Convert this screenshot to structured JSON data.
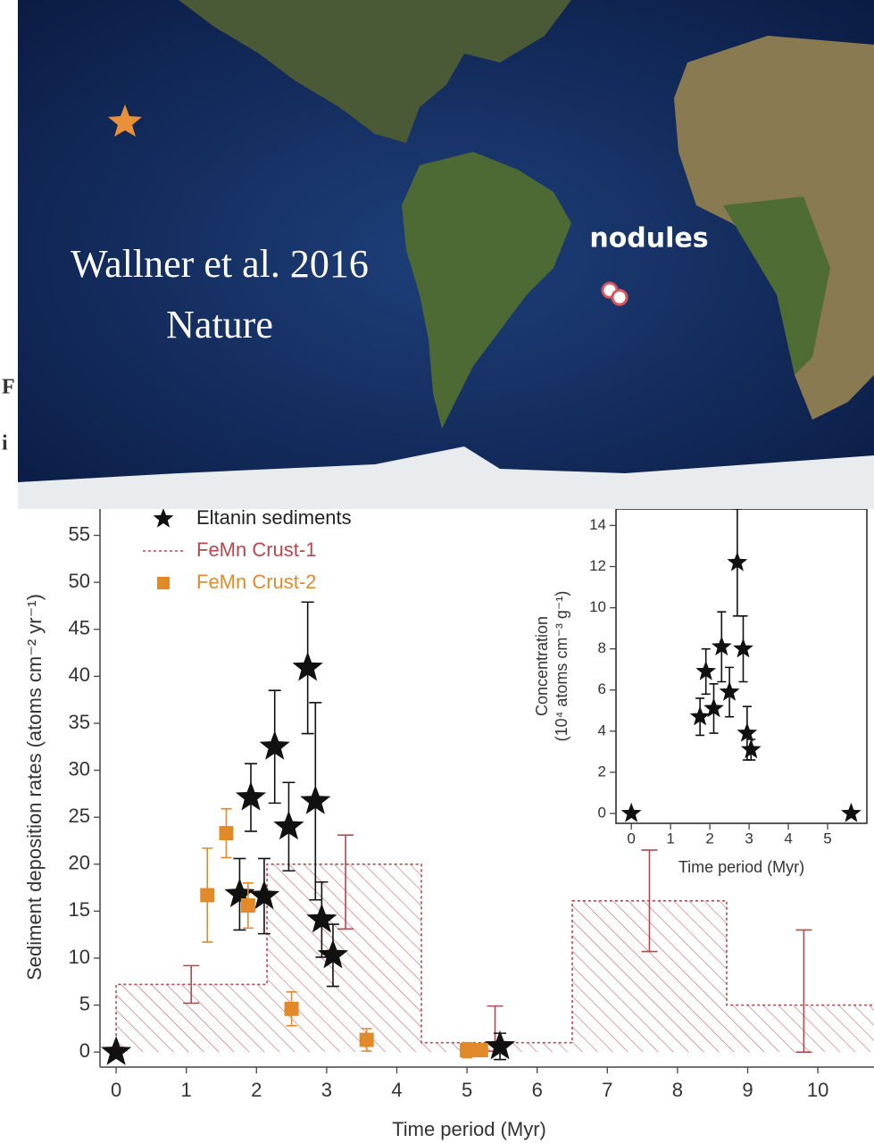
{
  "fragments": [
    "F",
    "i"
  ],
  "map": {
    "citation": [
      "Wallner et al. 2016",
      "Nature"
    ],
    "label": "nodules"
  },
  "chart_data": [
    {
      "type": "scatter",
      "xlabel": "Time period (Myr)",
      "ylabel": "Sediment deposition rates (atoms cm⁻² yr⁻¹)",
      "xlim": [
        -0.23,
        10.8
      ],
      "ylim": [
        -1.6,
        58
      ],
      "xticks": [
        0,
        1,
        2,
        3,
        4,
        5,
        6,
        7,
        8,
        9,
        10
      ],
      "yticks": [
        0,
        5,
        10,
        15,
        20,
        25,
        30,
        35,
        40,
        45,
        50,
        55
      ],
      "series": [
        {
          "name": "Eltanin sediments",
          "color": "#111111",
          "marker": "star",
          "x": [
            0,
            1.76,
            2.11,
            1.92,
            2.26,
            2.46,
            2.73,
            2.84,
            2.93,
            3.09,
            5.47
          ],
          "values": [
            0,
            16.8,
            16.6,
            27.1,
            32.5,
            24,
            40.9,
            26.7,
            14.1,
            10.3,
            0.6
          ],
          "errors": [
            0.3,
            3.8,
            4,
            3.6,
            6,
            4.7,
            7,
            10.5,
            4,
            3.3,
            1.4
          ]
        },
        {
          "name": "FeMn Crust-1",
          "color": "#b5474f",
          "marker": "step",
          "bins": [
            0,
            2.15,
            4.35,
            6.5,
            8.7,
            10.8
          ],
          "values": [
            7.2,
            20,
            1,
            16.1,
            5
          ],
          "error_bars": {
            "x": [
              1.07,
              3.27,
              5.4,
              7.6,
              9.8
            ],
            "values": [
              7.2,
              18.1,
              2.5,
              16.1,
              6.5
            ],
            "errors": [
              2,
              5,
              2.4,
              5.4,
              6.5
            ]
          }
        },
        {
          "name": "FeMn Crust-2",
          "color": "#e08a2a",
          "marker": "square",
          "x": [
            1.3,
            1.57,
            1.88,
            2.5,
            3.57,
            5.0,
            5.2
          ],
          "values": [
            16.7,
            23.3,
            15.6,
            4.6,
            1.3,
            0.2,
            0.2
          ],
          "errors": [
            5,
            2.6,
            2.4,
            1.8,
            1.2,
            0.8,
            0.6
          ]
        }
      ]
    },
    {
      "type": "scatter",
      "xlabel": "Time period (Myr)",
      "ylabel": [
        "Concentration",
        "(10⁴ atoms cm⁻³ g⁻¹)"
      ],
      "xlim": [
        -0.39,
        6.0
      ],
      "ylim": [
        -0.48,
        14.8
      ],
      "xticks": [
        0,
        1,
        2,
        3,
        4,
        5
      ],
      "yticks": [
        0,
        2,
        4,
        6,
        8,
        10,
        12,
        14
      ],
      "series": [
        {
          "color": "#111111",
          "marker": "star",
          "x": [
            0,
            1.75,
            1.9,
            2.1,
            2.3,
            2.5,
            2.7,
            2.85,
            2.95,
            3.05,
            5.6
          ],
          "values": [
            0,
            4.7,
            6.9,
            5.1,
            8.1,
            5.9,
            12.2,
            8,
            3.9,
            3.1,
            0
          ],
          "errors": [
            0,
            0.9,
            1.1,
            1.2,
            1.7,
            1.2,
            2.6,
            1.6,
            1.3,
            0.5,
            0
          ]
        }
      ]
    }
  ]
}
